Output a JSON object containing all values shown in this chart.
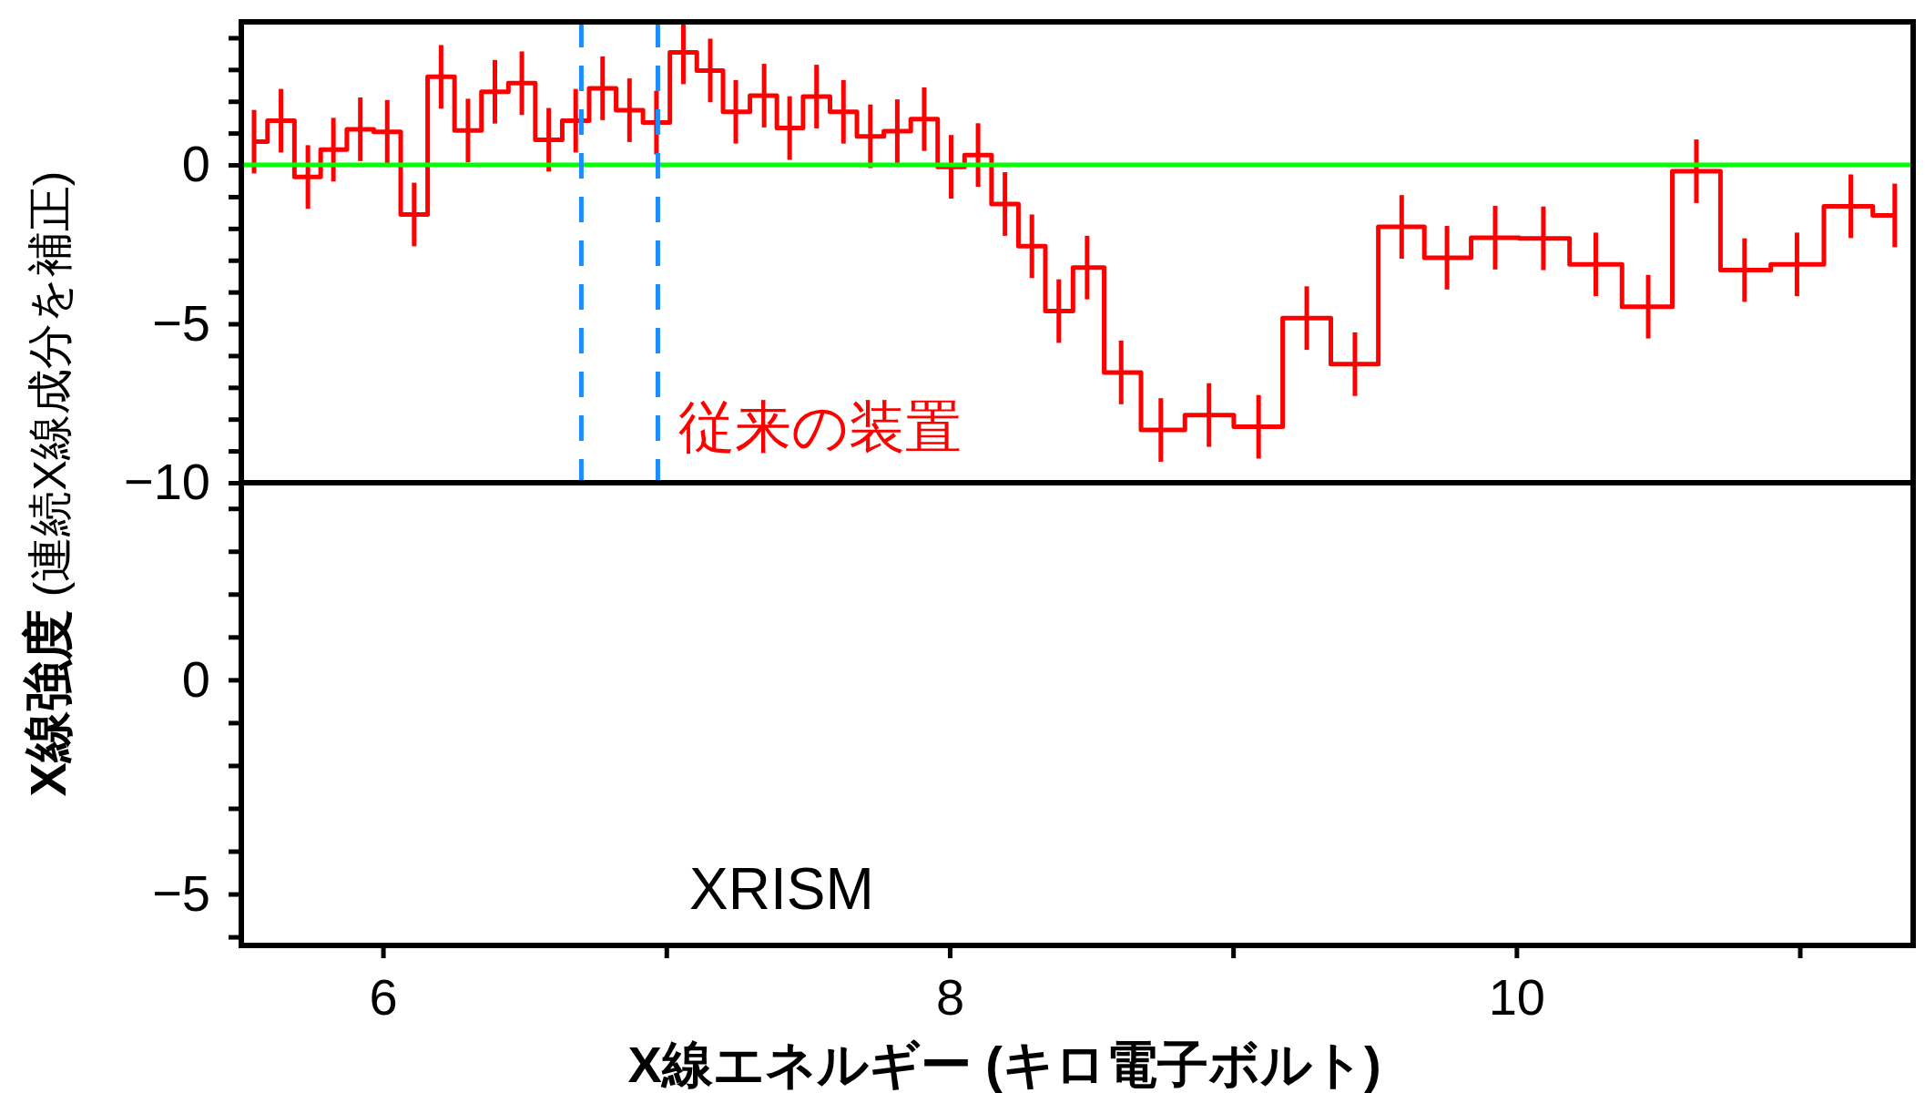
{
  "chart_data": [
    {
      "type": "step",
      "xlim": [
        5.5,
        11.4
      ],
      "ylim": [
        -10,
        4.5
      ],
      "xticks": [
        {
          "value": 6,
          "label": null
        },
        {
          "value": 7,
          "label": null
        },
        {
          "value": 8,
          "label": null
        },
        {
          "value": 9,
          "label": null
        },
        {
          "value": 10,
          "label": null
        },
        {
          "value": 11,
          "label": null
        }
      ],
      "yticks": [
        {
          "value": -10,
          "label": "−10"
        },
        {
          "value": -9,
          "label": null
        },
        {
          "value": -8,
          "label": null
        },
        {
          "value": -7,
          "label": null
        },
        {
          "value": -6,
          "label": null
        },
        {
          "value": -5,
          "label": "−5"
        },
        {
          "value": -4,
          "label": null
        },
        {
          "value": -3,
          "label": null
        },
        {
          "value": -2,
          "label": null
        },
        {
          "value": -1,
          "label": null
        },
        0,
        {
          "value": 1,
          "label": null
        },
        {
          "value": 2,
          "label": null
        },
        {
          "value": 3,
          "label": null
        },
        {
          "value": 4,
          "label": null
        }
      ],
      "tick_labels": "y",
      "ylabel": "X線強度 (連続X線成分を補正)",
      "annotations": [
        "従来の装置"
      ],
      "ref_lines": [
        {
          "axis": "y",
          "value": 0,
          "color": "#00ff00"
        },
        {
          "axis": "x",
          "value": 6.7,
          "color": "#1e8cff",
          "line_style": "dashed"
        },
        {
          "axis": "x",
          "value": 6.97,
          "color": "#1e8cff",
          "line_style": "dashed"
        }
      ],
      "series": [
        {
          "color": "#ff0000",
          "x": [
            5.545,
            5.64,
            5.735,
            5.825,
            5.92,
            6.015,
            6.11,
            6.205,
            6.3,
            6.395,
            6.49,
            6.585,
            6.68,
            6.775,
            6.87,
            6.965,
            7.06,
            7.155,
            7.245,
            7.345,
            7.435,
            7.53,
            7.625,
            7.72,
            7.815,
            7.91,
            8.005,
            8.1,
            8.195,
            8.29,
            8.385,
            8.485,
            8.605,
            8.745,
            8.915,
            9.09,
            9.26,
            9.43,
            9.595,
            9.755,
            9.925,
            10.095,
            10.28,
            10.465,
            10.635,
            10.805,
            10.99,
            11.18,
            11.335
          ],
          "values": [
            0.73,
            1.39,
            -0.38,
            0.48,
            1.12,
            1.04,
            -1.56,
            2.77,
            1.08,
            2.3,
            2.57,
            0.79,
            1.39,
            2.41,
            1.72,
            1.33,
            3.54,
            2.97,
            1.67,
            2.18,
            1.16,
            2.15,
            1.67,
            0.9,
            1.06,
            1.44,
            -0.06,
            0.31,
            -1.23,
            -2.56,
            -4.6,
            -3.23,
            -6.53,
            -8.34,
            -7.87,
            -8.24,
            -4.82,
            -6.27,
            -1.95,
            -2.92,
            -2.29,
            -2.31,
            -3.13,
            -4.46,
            -0.2,
            -3.31,
            -3.13,
            -1.3,
            -1.59
          ],
          "errors": [
            1,
            1,
            1,
            1,
            1,
            1,
            1,
            1,
            1,
            1,
            1,
            1,
            1,
            1,
            1,
            1,
            1,
            1,
            1,
            1,
            1,
            1,
            1,
            1,
            1,
            1,
            1,
            1,
            1,
            1,
            1,
            1,
            1,
            1,
            1,
            1,
            1,
            1,
            1,
            1,
            1,
            1,
            1,
            1,
            1,
            1,
            1,
            1,
            1
          ]
        }
      ]
    },
    {
      "type": "line",
      "xlim": [
        5.5,
        11.4
      ],
      "ylim": [
        -6.2,
        4.6
      ],
      "xticks": [
        6,
        {
          "value": 7,
          "label": null
        },
        8,
        {
          "value": 9,
          "label": null
        },
        10,
        {
          "value": 11,
          "label": null
        }
      ],
      "yticks": [
        {
          "value": -6,
          "label": null
        },
        {
          "value": -5,
          "label": "−5"
        },
        {
          "value": -4,
          "label": null
        },
        {
          "value": -3,
          "label": null
        },
        {
          "value": -2,
          "label": null
        },
        {
          "value": -1,
          "label": null
        },
        0,
        {
          "value": 1,
          "label": null
        },
        {
          "value": 2,
          "label": null
        },
        {
          "value": 3,
          "label": null
        },
        {
          "value": 4,
          "label": null
        }
      ],
      "xlabel": "X線エネルギー (キロ電子ボルト)",
      "annotations": [
        "XRISM"
      ]
    }
  ]
}
